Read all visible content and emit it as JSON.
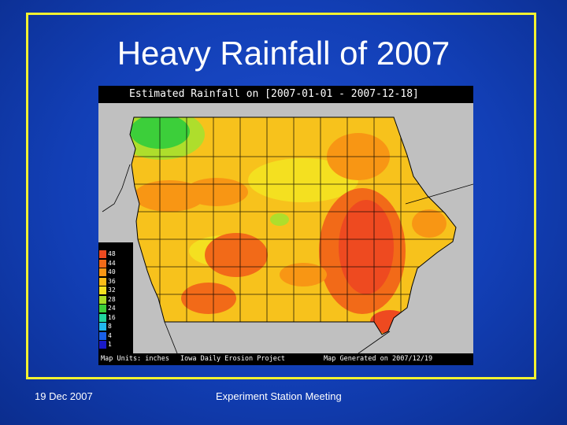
{
  "slide": {
    "title": "Heavy Rainfall of 2007",
    "date": "19 Dec 2007",
    "meeting": "Experiment Station Meeting"
  },
  "map": {
    "header": "Estimated Rainfall on [2007-01-01 - 2007-12-18]",
    "units": "Map Units: inches",
    "project": "Iowa Daily Erosion Project",
    "generated": "Map Generated on  2007/12/19",
    "legend": [
      {
        "label": "48",
        "color": "#ee4a20"
      },
      {
        "label": "44",
        "color": "#f26a18"
      },
      {
        "label": "40",
        "color": "#f89614"
      },
      {
        "label": "36",
        "color": "#fbbd18"
      },
      {
        "label": "32",
        "color": "#f4e020"
      },
      {
        "label": "28",
        "color": "#a8dc28"
      },
      {
        "label": "24",
        "color": "#3ccf3a"
      },
      {
        "label": "16",
        "color": "#22d6a0"
      },
      {
        "label": "8",
        "color": "#22b8ee"
      },
      {
        "label": "4",
        "color": "#1a60e8"
      },
      {
        "label": "1",
        "color": "#1a1ac8"
      }
    ]
  }
}
